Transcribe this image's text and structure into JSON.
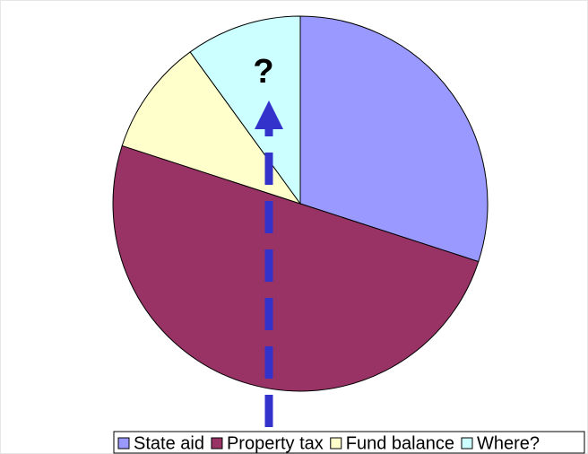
{
  "chart_data": {
    "type": "pie",
    "categories": [
      "State aid",
      "Property tax",
      "Fund balance",
      "Where?"
    ],
    "values": [
      30,
      50,
      10,
      10
    ],
    "colors": [
      "#9999ff",
      "#993366",
      "#ffffcc",
      "#ccffff"
    ],
    "annotation": "?",
    "legend": "bottom"
  }
}
